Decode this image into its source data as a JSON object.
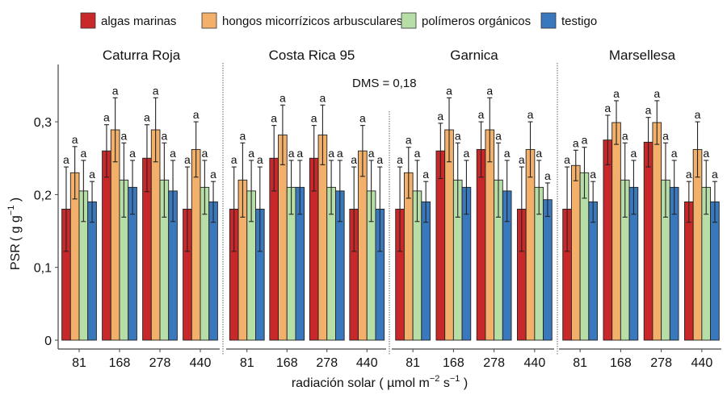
{
  "chart_data": {
    "type": "bar",
    "ylabel": "PSR ( g g⁻¹ )",
    "ylabel_main": "PSR",
    "ylabel_unit": "( g g",
    "ylabel_sup": "−1",
    "ylabel_close": " )",
    "xlabel_main": "radiación solar ( µmol m",
    "xlabel_sup1": "−2",
    "xlabel_mid": " s",
    "xlabel_sup2": "−1",
    "xlabel_close": " )",
    "ylim": [
      0,
      0.36
    ],
    "yticks": [
      0,
      0.1,
      0.2,
      0.3
    ],
    "ytick_labels": [
      "0",
      "0,1",
      "0,2",
      "0,3"
    ],
    "annotation": "DMS = 0,18",
    "legend": [
      {
        "name": "algas marinas",
        "color": "#c8282a"
      },
      {
        "name": "hongos micorrízicos arbusculares",
        "color": "#f2b06a"
      },
      {
        "name": "polímeros orgánicos",
        "color": "#b8dea8"
      },
      {
        "name": "testigo",
        "color": "#3a78be"
      }
    ],
    "legend_position": "top",
    "categories": [
      "81",
      "168",
      "278",
      "440"
    ],
    "significance_letter": "a",
    "panels": [
      {
        "title": "Caturra Roja",
        "series": [
          {
            "name": "algas marinas",
            "values": [
              0.18,
              0.26,
              0.25,
              0.18
            ],
            "error": [
              0.058,
              0.036,
              0.046,
              0.058
            ]
          },
          {
            "name": "hongos micorrízicos arbusculares",
            "values": [
              0.23,
              0.289,
              0.289,
              0.262
            ],
            "error": [
              0.036,
              0.044,
              0.044,
              0.038
            ]
          },
          {
            "name": "polímeros orgánicos",
            "values": [
              0.205,
              0.22,
              0.22,
              0.21
            ],
            "error": [
              0.042,
              0.051,
              0.051,
              0.037
            ]
          },
          {
            "name": "testigo",
            "values": [
              0.19,
              0.21,
              0.205,
              0.19
            ],
            "error": [
              0.028,
              0.037,
              0.042,
              0.028
            ]
          }
        ]
      },
      {
        "title": "Costa Rica 95",
        "series": [
          {
            "name": "algas marinas",
            "values": [
              0.18,
              0.25,
              0.25,
              0.18
            ],
            "error": [
              0.058,
              0.045,
              0.045,
              0.058
            ]
          },
          {
            "name": "hongos micorrízicos arbusculares",
            "values": [
              0.22,
              0.282,
              0.282,
              0.26
            ],
            "error": [
              0.051,
              0.041,
              0.041,
              0.035
            ]
          },
          {
            "name": "polímeros orgánicos",
            "values": [
              0.205,
              0.21,
              0.21,
              0.205
            ],
            "error": [
              0.042,
              0.037,
              0.037,
              0.042
            ]
          },
          {
            "name": "testigo",
            "values": [
              0.18,
              0.21,
              0.205,
              0.18
            ],
            "error": [
              0.058,
              0.037,
              0.042,
              0.058
            ]
          }
        ]
      },
      {
        "title": "Garnica",
        "series": [
          {
            "name": "algas marinas",
            "values": [
              0.18,
              0.26,
              0.262,
              0.18
            ],
            "error": [
              0.058,
              0.038,
              0.038,
              0.058
            ]
          },
          {
            "name": "hongos micorrízicos arbusculares",
            "values": [
              0.23,
              0.289,
              0.289,
              0.262
            ],
            "error": [
              0.035,
              0.044,
              0.044,
              0.038
            ]
          },
          {
            "name": "polímeros orgánicos",
            "values": [
              0.205,
              0.22,
              0.22,
              0.21
            ],
            "error": [
              0.042,
              0.051,
              0.051,
              0.037
            ]
          },
          {
            "name": "testigo",
            "values": [
              0.19,
              0.21,
              0.205,
              0.193
            ],
            "error": [
              0.028,
              0.037,
              0.042,
              0.023
            ]
          }
        ]
      },
      {
        "title": "Marsellesa",
        "series": [
          {
            "name": "algas marinas",
            "values": [
              0.18,
              0.275,
              0.272,
              0.19
            ],
            "error": [
              0.058,
              0.034,
              0.034,
              0.028
            ]
          },
          {
            "name": "hongos micorrízicos arbusculares",
            "values": [
              0.24,
              0.299,
              0.299,
              0.262
            ],
            "error": [
              0.021,
              0.03,
              0.03,
              0.038
            ]
          },
          {
            "name": "polímeros orgánicos",
            "values": [
              0.23,
              0.22,
              0.22,
              0.21
            ],
            "error": [
              0.035,
              0.051,
              0.051,
              0.037
            ]
          },
          {
            "name": "testigo",
            "values": [
              0.19,
              0.21,
              0.21,
              0.19
            ],
            "error": [
              0.028,
              0.037,
              0.037,
              0.028
            ]
          }
        ]
      }
    ]
  }
}
